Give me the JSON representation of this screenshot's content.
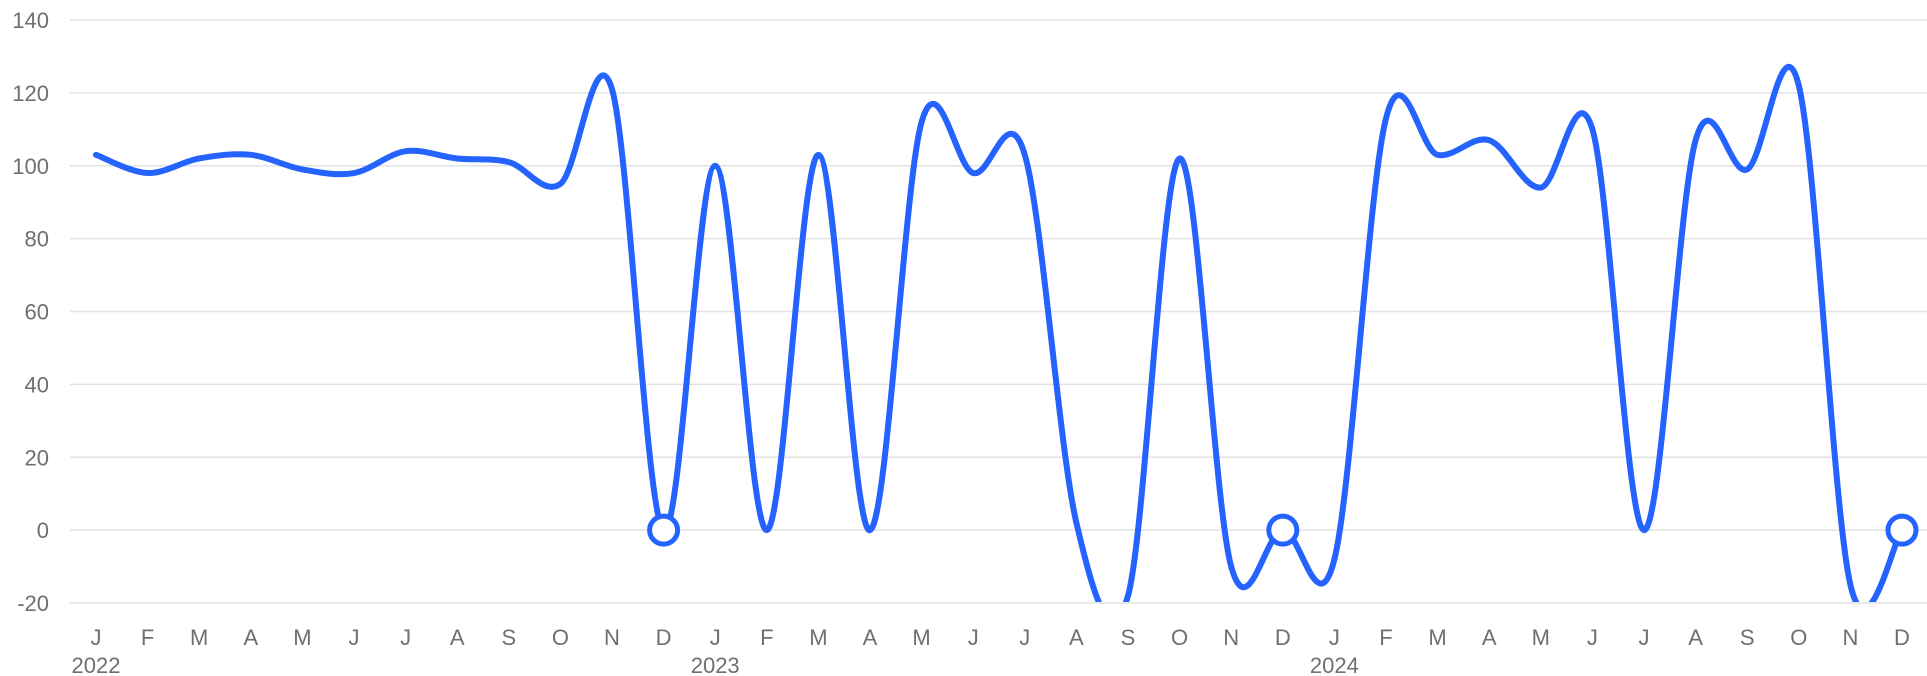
{
  "chart_data": {
    "type": "line",
    "title": "",
    "xlabel": "",
    "ylabel": "",
    "x": [
      "J",
      "F",
      "M",
      "A",
      "M",
      "J",
      "J",
      "A",
      "S",
      "O",
      "N",
      "D",
      "J",
      "F",
      "M",
      "A",
      "M",
      "J",
      "J",
      "A",
      "S",
      "O",
      "N",
      "D",
      "J",
      "F",
      "M",
      "A",
      "M",
      "J",
      "J",
      "A",
      "S",
      "O",
      "N",
      "D"
    ],
    "year_labels": [
      {
        "index": 0,
        "label": "2022"
      },
      {
        "index": 12,
        "label": "2023"
      },
      {
        "index": 24,
        "label": "2024"
      }
    ],
    "ylim": [
      -20,
      140
    ],
    "yticks": [
      140,
      120,
      100,
      80,
      60,
      40,
      20,
      0,
      -20
    ],
    "grid": true,
    "series": [
      {
        "color": "#2563ff",
        "values": [
          103,
          98,
          102,
          103,
          99,
          98,
          104,
          102,
          101,
          95,
          121,
          0,
          100,
          0,
          103,
          0,
          112,
          98,
          103,
          2,
          -18,
          102,
          -10,
          0,
          -8,
          113,
          103,
          107,
          94,
          110,
          0,
          107,
          99,
          122,
          -15,
          0
        ],
        "markers": [
          11,
          23,
          35
        ]
      }
    ]
  }
}
